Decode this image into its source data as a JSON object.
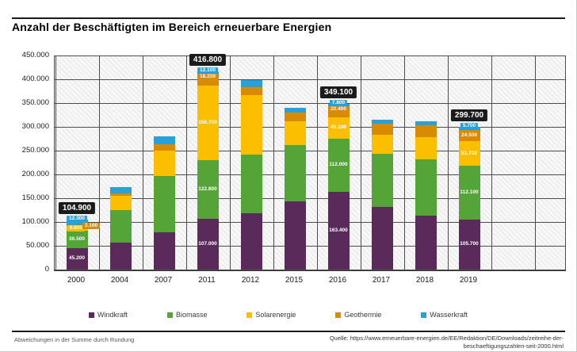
{
  "title": "Anzahl der Beschäftigten im Bereich erneuerbare Energien",
  "footer": {
    "note": "Abweichungen in der Summe durch Rundung",
    "source_line1": "Quelle: https://www.erneuerbare-energien.de/EE/Redaktion/DE/Downloads/zeitreihe-der-",
    "source_line2": "beschaeftigungszahlen-seit-2000.html"
  },
  "colors": {
    "windkraft": "#5A2A5B",
    "biomasse": "#54A437",
    "solarenergie": "#FCBF00",
    "geothermie": "#D98B00",
    "wasserkraft": "#2AA0D8",
    "total_box_bg": "#1B1B1B",
    "total_box_text": "#FFFFFF"
  },
  "chart_data": {
    "type": "bar",
    "stacked": true,
    "title": "Anzahl der Beschäftigten im Bereich erneuerbare Energien",
    "xlabel": "",
    "ylabel": "",
    "ylim": [
      0,
      450000
    ],
    "ytick_step": 50000,
    "yticks": [
      "450.000",
      "400.000",
      "350.000",
      "300.000",
      "250.000",
      "200.000",
      "150.000",
      "100.000",
      "50.000",
      "0"
    ],
    "grid": true,
    "legend_position": "bottom",
    "categories": [
      "2000",
      "2004",
      "2007",
      "2011",
      "2012",
      "2015",
      "2016",
      "2017",
      "2018",
      "2019"
    ],
    "series": [
      {
        "name": "Windkraft",
        "color": "#5A2A5B",
        "values": [
          45200,
          57000,
          79000,
          107000,
          119000,
          143000,
          163400,
          131000,
          113000,
          105700
        ]
      },
      {
        "name": "Biomasse",
        "color": "#54A437",
        "values": [
          36500,
          68000,
          118000,
          122800,
          122000,
          118000,
          112000,
          113000,
          118000,
          112100
        ]
      },
      {
        "name": "Solarenergie",
        "color": "#FCBF00",
        "values": [
          8800,
          29500,
          53000,
          156700,
          126000,
          50000,
          45100,
          40000,
          48000,
          51700
        ]
      },
      {
        "name": "Geothermie",
        "color": "#D98B00",
        "values": [
          2100,
          5500,
          14000,
          18200,
          17000,
          18500,
          20400,
          23500,
          24000,
          24500
        ]
      },
      {
        "name": "Wasserkraft",
        "color": "#2AA0D8",
        "values": [
          12300,
          13500,
          15500,
          12100,
          14500,
          10500,
          7800,
          7500,
          8500,
          5700
        ]
      }
    ],
    "totals": {
      "2000": "104.900",
      "2011": "416.800",
      "2016": "349.100",
      "2019": "299.700"
    },
    "inside_labels": {
      "2000": {
        "Windkraft": "45.200",
        "Biomasse": "36.500"
      },
      "2011": {
        "Windkraft": "107.000",
        "Biomasse": "122.800",
        "Solarenergie": "156.700"
      },
      "2016": {
        "Windkraft": "163.400",
        "Biomasse": "112.000",
        "Solarenergie": "45.100"
      },
      "2019": {
        "Windkraft": "105.700",
        "Biomasse": "112.100",
        "Solarenergie": "51.700",
        "Geothermie": "24.500"
      }
    },
    "chips": {
      "2000": [
        {
          "series": "Wasserkraft",
          "text": "12.300",
          "pos": "top"
        },
        {
          "series": "Solarenergie",
          "text": "8.800",
          "pos": "left"
        },
        {
          "series": "Geothermie",
          "text": "2.100",
          "pos": "right"
        }
      ],
      "2011": [
        {
          "series": "Wasserkraft",
          "text": "12.100",
          "pos": "top"
        },
        {
          "series": "Geothermie",
          "text": "18.200",
          "pos": "top"
        }
      ],
      "2016": [
        {
          "series": "Wasserkraft",
          "text": "7.800",
          "pos": "top"
        },
        {
          "series": "Geothermie",
          "text": "20.400",
          "pos": "top"
        }
      ],
      "2019": [
        {
          "series": "Wasserkraft",
          "text": "5.700",
          "pos": "top"
        }
      ]
    }
  }
}
